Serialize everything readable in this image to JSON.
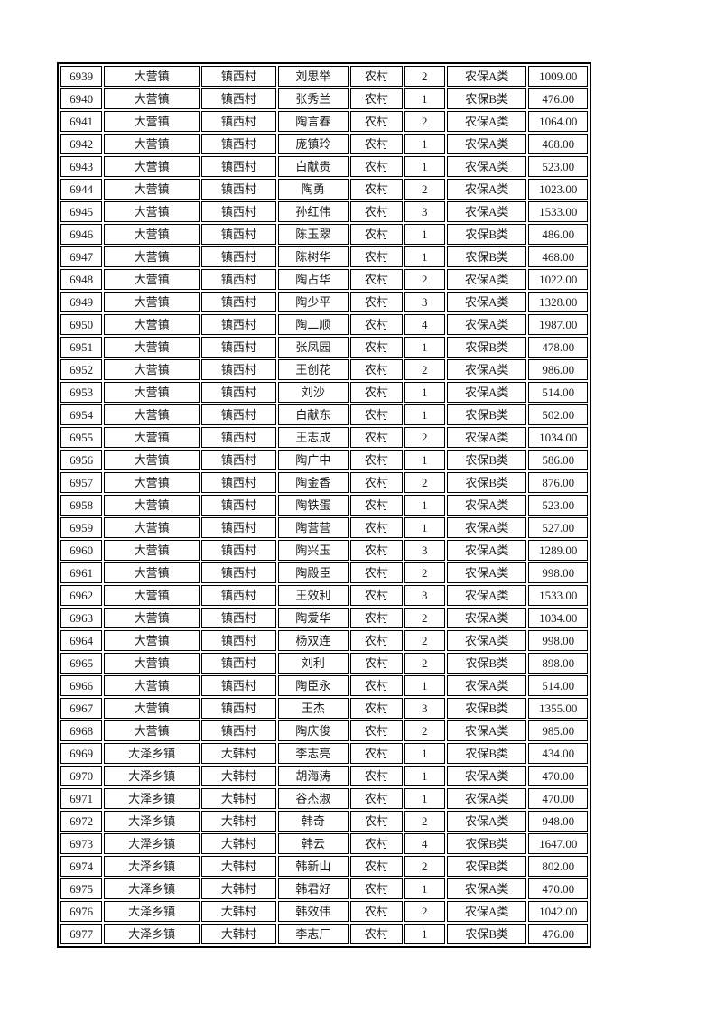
{
  "page": {
    "type": "printed-roster-page",
    "background_color": "#ffffff",
    "border_color": "#000000",
    "text_color": "#1c1c1c"
  },
  "table": {
    "column_keys": [
      "serial",
      "town",
      "village",
      "name",
      "residence",
      "count",
      "insurance_class",
      "amount"
    ],
    "rows": [
      [
        "6939",
        "大营镇",
        "镇西村",
        "刘思举",
        "农村",
        "2",
        "农保A类",
        "1009.00"
      ],
      [
        "6940",
        "大营镇",
        "镇西村",
        "张秀兰",
        "农村",
        "1",
        "农保B类",
        "476.00"
      ],
      [
        "6941",
        "大营镇",
        "镇西村",
        "陶言春",
        "农村",
        "2",
        "农保A类",
        "1064.00"
      ],
      [
        "6942",
        "大营镇",
        "镇西村",
        "庞镇玲",
        "农村",
        "1",
        "农保A类",
        "468.00"
      ],
      [
        "6943",
        "大营镇",
        "镇西村",
        "白献贵",
        "农村",
        "1",
        "农保A类",
        "523.00"
      ],
      [
        "6944",
        "大营镇",
        "镇西村",
        "陶勇",
        "农村",
        "2",
        "农保A类",
        "1023.00"
      ],
      [
        "6945",
        "大营镇",
        "镇西村",
        "孙红伟",
        "农村",
        "3",
        "农保A类",
        "1533.00"
      ],
      [
        "6946",
        "大营镇",
        "镇西村",
        "陈玉翠",
        "农村",
        "1",
        "农保B类",
        "486.00"
      ],
      [
        "6947",
        "大营镇",
        "镇西村",
        "陈树华",
        "农村",
        "1",
        "农保B类",
        "468.00"
      ],
      [
        "6948",
        "大营镇",
        "镇西村",
        "陶占华",
        "农村",
        "2",
        "农保A类",
        "1022.00"
      ],
      [
        "6949",
        "大营镇",
        "镇西村",
        "陶少平",
        "农村",
        "3",
        "农保A类",
        "1328.00"
      ],
      [
        "6950",
        "大营镇",
        "镇西村",
        "陶二顺",
        "农村",
        "4",
        "农保A类",
        "1987.00"
      ],
      [
        "6951",
        "大营镇",
        "镇西村",
        "张凤园",
        "农村",
        "1",
        "农保B类",
        "478.00"
      ],
      [
        "6952",
        "大营镇",
        "镇西村",
        "王创花",
        "农村",
        "2",
        "农保A类",
        "986.00"
      ],
      [
        "6953",
        "大营镇",
        "镇西村",
        "刘沙",
        "农村",
        "1",
        "农保A类",
        "514.00"
      ],
      [
        "6954",
        "大营镇",
        "镇西村",
        "白献东",
        "农村",
        "1",
        "农保B类",
        "502.00"
      ],
      [
        "6955",
        "大营镇",
        "镇西村",
        "王志成",
        "农村",
        "2",
        "农保A类",
        "1034.00"
      ],
      [
        "6956",
        "大营镇",
        "镇西村",
        "陶广中",
        "农村",
        "1",
        "农保B类",
        "586.00"
      ],
      [
        "6957",
        "大营镇",
        "镇西村",
        "陶金香",
        "农村",
        "2",
        "农保B类",
        "876.00"
      ],
      [
        "6958",
        "大营镇",
        "镇西村",
        "陶铁蛋",
        "农村",
        "1",
        "农保A类",
        "523.00"
      ],
      [
        "6959",
        "大营镇",
        "镇西村",
        "陶营营",
        "农村",
        "1",
        "农保A类",
        "527.00"
      ],
      [
        "6960",
        "大营镇",
        "镇西村",
        "陶兴玉",
        "农村",
        "3",
        "农保A类",
        "1289.00"
      ],
      [
        "6961",
        "大营镇",
        "镇西村",
        "陶殿臣",
        "农村",
        "2",
        "农保A类",
        "998.00"
      ],
      [
        "6962",
        "大营镇",
        "镇西村",
        "王效利",
        "农村",
        "3",
        "农保A类",
        "1533.00"
      ],
      [
        "6963",
        "大营镇",
        "镇西村",
        "陶爱华",
        "农村",
        "2",
        "农保A类",
        "1034.00"
      ],
      [
        "6964",
        "大营镇",
        "镇西村",
        "杨双连",
        "农村",
        "2",
        "农保A类",
        "998.00"
      ],
      [
        "6965",
        "大营镇",
        "镇西村",
        "刘利",
        "农村",
        "2",
        "农保B类",
        "898.00"
      ],
      [
        "6966",
        "大营镇",
        "镇西村",
        "陶臣永",
        "农村",
        "1",
        "农保A类",
        "514.00"
      ],
      [
        "6967",
        "大营镇",
        "镇西村",
        "王杰",
        "农村",
        "3",
        "农保B类",
        "1355.00"
      ],
      [
        "6968",
        "大营镇",
        "镇西村",
        "陶庆俊",
        "农村",
        "2",
        "农保A类",
        "985.00"
      ],
      [
        "6969",
        "大泽乡镇",
        "大韩村",
        "李志亮",
        "农村",
        "1",
        "农保B类",
        "434.00"
      ],
      [
        "6970",
        "大泽乡镇",
        "大韩村",
        "胡海涛",
        "农村",
        "1",
        "农保A类",
        "470.00"
      ],
      [
        "6971",
        "大泽乡镇",
        "大韩村",
        "谷杰淑",
        "农村",
        "1",
        "农保A类",
        "470.00"
      ],
      [
        "6972",
        "大泽乡镇",
        "大韩村",
        "韩奇",
        "农村",
        "2",
        "农保A类",
        "948.00"
      ],
      [
        "6973",
        "大泽乡镇",
        "大韩村",
        "韩云",
        "农村",
        "4",
        "农保B类",
        "1647.00"
      ],
      [
        "6974",
        "大泽乡镇",
        "大韩村",
        "韩新山",
        "农村",
        "2",
        "农保B类",
        "802.00"
      ],
      [
        "6975",
        "大泽乡镇",
        "大韩村",
        "韩君好",
        "农村",
        "1",
        "农保A类",
        "470.00"
      ],
      [
        "6976",
        "大泽乡镇",
        "大韩村",
        "韩效伟",
        "农村",
        "2",
        "农保A类",
        "1042.00"
      ],
      [
        "6977",
        "大泽乡镇",
        "大韩村",
        "李志厂",
        "农村",
        "1",
        "农保B类",
        "476.00"
      ]
    ]
  }
}
